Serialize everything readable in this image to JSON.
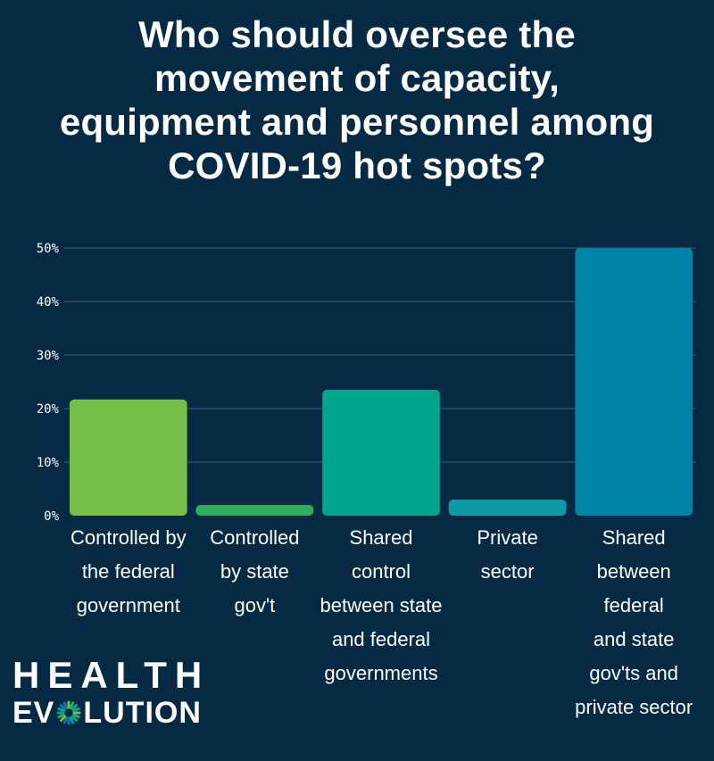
{
  "chart_data": {
    "type": "bar",
    "title": "Who should oversee the\nmovement of capacity,\nequipment and personnel among\nCOVID-19 hot spots?",
    "categories": [
      "Controlled by\nthe federal\ngovernment",
      "Controlled\nby state\ngov't",
      "Shared\ncontrol\nbetween state\nand federal\ngovernments",
      "Private\nsector",
      "Shared\nbetween federal\nand state\ngov'ts and\nprivate sector"
    ],
    "values": [
      21.7,
      2.0,
      23.5,
      3.0,
      50.0
    ],
    "colors": [
      "#74bf46",
      "#2fae5f",
      "#00a58d",
      "#0e9aa6",
      "#0083a8"
    ],
    "yticks": [
      "0%",
      "10%",
      "20%",
      "30%",
      "40%",
      "50%"
    ],
    "ylim": [
      0,
      50
    ],
    "grid": true
  },
  "logo": {
    "line1": "HEALTH",
    "line2_a": "EV",
    "line2_b": "LUTION"
  },
  "colors": {
    "background": "#072a44",
    "grid": "#3f5c73"
  }
}
